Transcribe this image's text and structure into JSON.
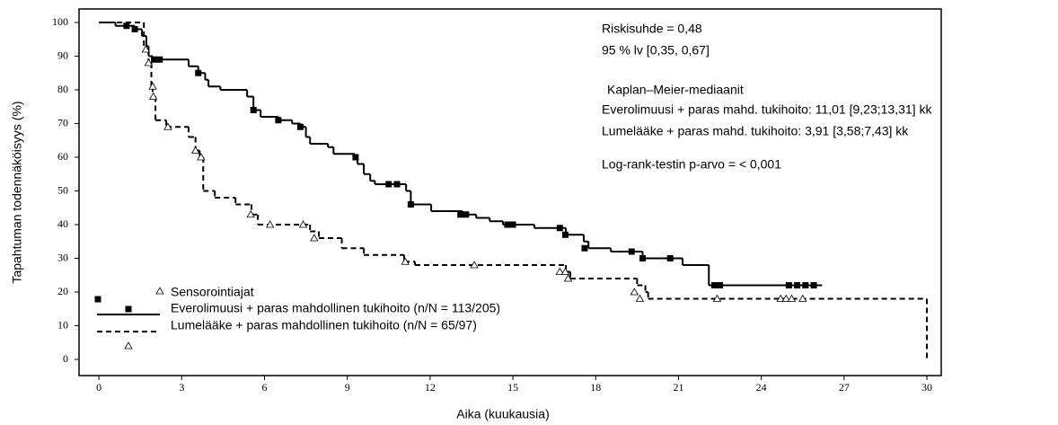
{
  "chart_data": {
    "type": "step",
    "y_label": "Tapahtuman todennäköisyys (%)",
    "x_label": "Aika (kuukausia)",
    "xlim": [
      -0.72,
      30.52
    ],
    "ylim": [
      -4.8,
      104
    ],
    "xticks": [
      0,
      3,
      6,
      9,
      12,
      15,
      18,
      21,
      24,
      27,
      30
    ],
    "yticks": [
      0,
      10,
      20,
      30,
      40,
      50,
      60,
      70,
      80,
      90,
      100
    ],
    "censor_legend": "Sensorointiajat",
    "annotations": [
      "Riskisuhde = 0,48",
      "95 % lv [0,35, 0,67]",
      "Kaplan–Meier-mediaanit",
      "Everolimuusi + paras mahd. tukihoito: 11,01 [9,23;13,31] kk",
      "Lumelääke + paras mahd. tukihoito: 3,91 [3,58;7,43] kk",
      "Log-rank-testin p-arvo = < 0,001"
    ],
    "series": [
      {
        "name": "Everolimuusi + paras mahdollinen tukihoito (n/N = 113/205)",
        "color": "#000000",
        "line_style": "solid",
        "marker": "square",
        "x": [
          0,
          0.6,
          1.3,
          1.56,
          1.72,
          1.8,
          1.95,
          3.25,
          3.6,
          3.85,
          3.97,
          4.4,
          5.37,
          5.6,
          5.86,
          6.5,
          7.0,
          7.3,
          7.5,
          7.65,
          8.3,
          8.5,
          9.27,
          9.37,
          9.6,
          9.83,
          10.0,
          11.13,
          11.3,
          12.04,
          13.18,
          13.67,
          14.16,
          14.64,
          15.78,
          16.92,
          17.57,
          17.74,
          18.55,
          19.7,
          21.15,
          22.1,
          26.2
        ],
        "values": [
          100,
          99,
          98,
          96,
          93,
          90,
          89,
          87,
          85,
          83,
          81,
          80,
          78,
          74,
          72,
          71,
          70,
          69,
          66,
          64,
          63,
          61,
          60,
          58,
          55,
          53,
          52,
          50,
          46,
          44,
          43,
          42,
          41,
          40,
          39,
          37,
          35,
          33,
          32,
          30,
          28,
          22,
          22
        ],
        "censor_x": [
          1.0,
          1.3,
          2.0,
          2.2,
          3.6,
          5.6,
          6.5,
          7.3,
          9.3,
          10.5,
          10.8,
          11.3,
          13.1,
          13.3,
          14.8,
          15.0,
          16.7,
          16.9,
          17.6,
          19.3,
          19.7,
          20.7,
          22.3,
          22.5,
          25.0,
          25.3,
          25.6,
          25.9
        ],
        "censor_values": [
          99,
          98,
          89,
          89,
          85,
          74,
          71,
          69,
          60,
          52,
          52,
          46,
          43,
          43,
          40,
          40,
          39,
          37,
          33,
          32,
          30,
          30,
          22,
          22,
          22,
          22,
          22,
          22
        ]
      },
      {
        "name": "Lumelääke + paras mahdollinen tukihoito (n/N = 65/97)",
        "color": "#000000",
        "line_style": "dashed",
        "marker": "triangle",
        "x": [
          0,
          1.63,
          1.8,
          1.9,
          1.95,
          2.05,
          2.44,
          3.25,
          3.5,
          3.65,
          3.78,
          4.2,
          4.95,
          5.53,
          5.76,
          7.65,
          7.97,
          8.8,
          9.6,
          11.06,
          11.45,
          16.92,
          17.08,
          19.5,
          19.8,
          19.9,
          30
        ],
        "values": [
          100,
          92,
          88,
          81,
          78,
          71,
          69,
          66,
          62,
          60,
          50,
          48,
          46,
          43,
          40,
          38,
          36,
          33,
          31,
          29,
          28,
          26,
          24,
          22,
          20,
          18,
          0
        ],
        "censor_x": [
          1.7,
          1.8,
          1.95,
          1.97,
          2.5,
          3.5,
          3.7,
          5.5,
          6.2,
          7.4,
          7.8,
          11.1,
          13.6,
          16.7,
          16.9,
          17.0,
          19.4,
          19.6,
          22.4,
          24.7,
          24.9,
          25.1,
          25.5
        ],
        "censor_values": [
          92,
          88,
          81,
          78,
          69,
          62,
          60,
          43,
          40,
          40,
          36,
          29,
          28,
          26,
          26,
          24,
          20,
          18,
          18,
          18,
          18,
          18,
          18
        ]
      }
    ]
  }
}
